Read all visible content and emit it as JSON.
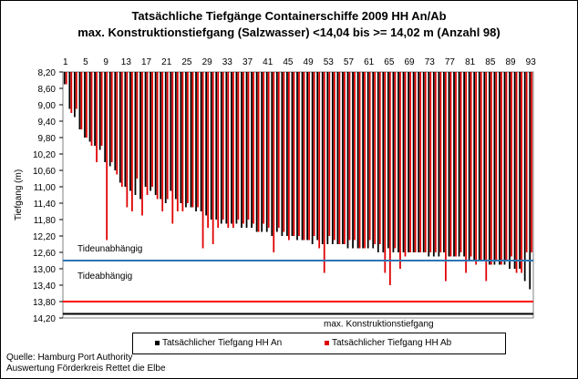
{
  "chart_data": {
    "type": "bar",
    "title": "Tatsächliche Tiefgänge Containerschiffe  2009 HH An/Ab",
    "subtitle": "max. Konstruktionstiefgang  (Salzwasser)  <14,04 bis >= 14,02 m (Anzahl 98)",
    "ylabel": "Tiefgang (m)",
    "xlabel": "",
    "ylim": [
      8.2,
      14.2
    ],
    "y_inverted": true,
    "y_ticks": [
      "8,20",
      "8,60",
      "9,00",
      "9,40",
      "9,80",
      "10,20",
      "10,60",
      "11,00",
      "11,40",
      "11,80",
      "12,20",
      "12,60",
      "13,00",
      "13,40",
      "13,80",
      "14,20"
    ],
    "x_ticks": [
      "1",
      "5",
      "9",
      "13",
      "17",
      "21",
      "25",
      "29",
      "33",
      "37",
      "41",
      "45",
      "49",
      "53",
      "57",
      "61",
      "65",
      "69",
      "73",
      "77",
      "81",
      "85",
      "89",
      "93"
    ],
    "categories": [
      1,
      2,
      3,
      4,
      5,
      6,
      7,
      8,
      9,
      10,
      11,
      12,
      13,
      14,
      15,
      16,
      17,
      18,
      19,
      20,
      21,
      22,
      23,
      24,
      25,
      26,
      27,
      28,
      29,
      30,
      31,
      32,
      33,
      34,
      35,
      36,
      37,
      38,
      39,
      40,
      41,
      42,
      43,
      44,
      45,
      46,
      47,
      48,
      49,
      50,
      51,
      52,
      53,
      54,
      55,
      56,
      57,
      58,
      59,
      60,
      61,
      62,
      63,
      64,
      65,
      66,
      67,
      68,
      69,
      70,
      71,
      72,
      73,
      74,
      75,
      76,
      77,
      78,
      79,
      80,
      81,
      82,
      83,
      84,
      85,
      86,
      87,
      88,
      89,
      90,
      91,
      92,
      93
    ],
    "series": [
      {
        "name": "Tatsächlicher Tiefgang HH An",
        "color": "#000000",
        "values": [
          8.5,
          9.1,
          9.3,
          9.6,
          9.8,
          9.9,
          10.0,
          10.1,
          10.4,
          10.5,
          10.6,
          10.9,
          11.0,
          11.1,
          11.2,
          11.3,
          11.0,
          11.1,
          11.2,
          11.3,
          11.4,
          11.1,
          11.3,
          11.4,
          11.5,
          11.5,
          11.6,
          11.6,
          11.7,
          11.8,
          11.8,
          11.9,
          11.9,
          11.9,
          11.9,
          12.0,
          12.0,
          12.0,
          12.1,
          12.1,
          12.1,
          12.2,
          12.1,
          12.2,
          12.2,
          12.2,
          12.3,
          12.3,
          12.3,
          12.4,
          12.3,
          12.4,
          12.4,
          12.4,
          12.4,
          12.4,
          12.5,
          12.5,
          12.5,
          12.5,
          12.5,
          12.5,
          12.6,
          12.6,
          12.5,
          12.6,
          12.6,
          12.6,
          12.6,
          12.6,
          12.6,
          12.6,
          12.7,
          12.7,
          12.7,
          12.6,
          12.7,
          12.7,
          12.7,
          12.7,
          12.8,
          12.8,
          12.8,
          12.8,
          12.9,
          12.9,
          12.9,
          12.9,
          13.0,
          13.0,
          13.0,
          13.3,
          13.5
        ]
      },
      {
        "name": "Tatsächlicher Tiefgang HH Ab",
        "color": "#e00000",
        "values": [
          8.5,
          9.2,
          9.1,
          9.6,
          9.8,
          10.0,
          10.4,
          10.0,
          12.3,
          10.4,
          10.7,
          11.0,
          11.5,
          11.6,
          10.8,
          11.7,
          11.2,
          11.0,
          11.3,
          11.6,
          11.3,
          11.9,
          11.6,
          11.6,
          11.4,
          11.5,
          11.5,
          12.5,
          12.0,
          12.4,
          12.0,
          11.8,
          12.0,
          12.0,
          11.8,
          11.9,
          11.8,
          11.9,
          12.1,
          11.9,
          12.0,
          12.6,
          12.0,
          12.1,
          12.3,
          12.2,
          12.2,
          12.3,
          12.3,
          12.2,
          12.5,
          13.1,
          12.2,
          12.3,
          12.4,
          12.4,
          12.3,
          12.3,
          12.5,
          12.5,
          12.3,
          12.4,
          12.4,
          13.1,
          13.4,
          12.5,
          13.0,
          12.7,
          12.6,
          12.6,
          12.6,
          12.6,
          12.6,
          12.6,
          12.6,
          13.3,
          12.7,
          12.7,
          12.6,
          13.1,
          12.7,
          12.9,
          12.8,
          13.3,
          12.9,
          12.8,
          12.9,
          12.8,
          12.7,
          13.1,
          13.1,
          12.6,
          12.6
        ]
      }
    ],
    "reference_lines": [
      {
        "label_above": "Tideunabhängig",
        "label_below": "Tideabhängig",
        "value": 12.8,
        "color": "#2e75b6"
      },
      {
        "label": "",
        "value": 13.8,
        "color": "#ff0000"
      },
      {
        "label": "max. Konstruktionstiefgang",
        "value": 14.1,
        "color": "#000000"
      }
    ],
    "grid": false,
    "legend_placement": "bottom"
  },
  "source": {
    "line1": "Quelle: Hamburg Port Authority",
    "line2": "Auswertung Förderkreis Rettet die Elbe"
  }
}
